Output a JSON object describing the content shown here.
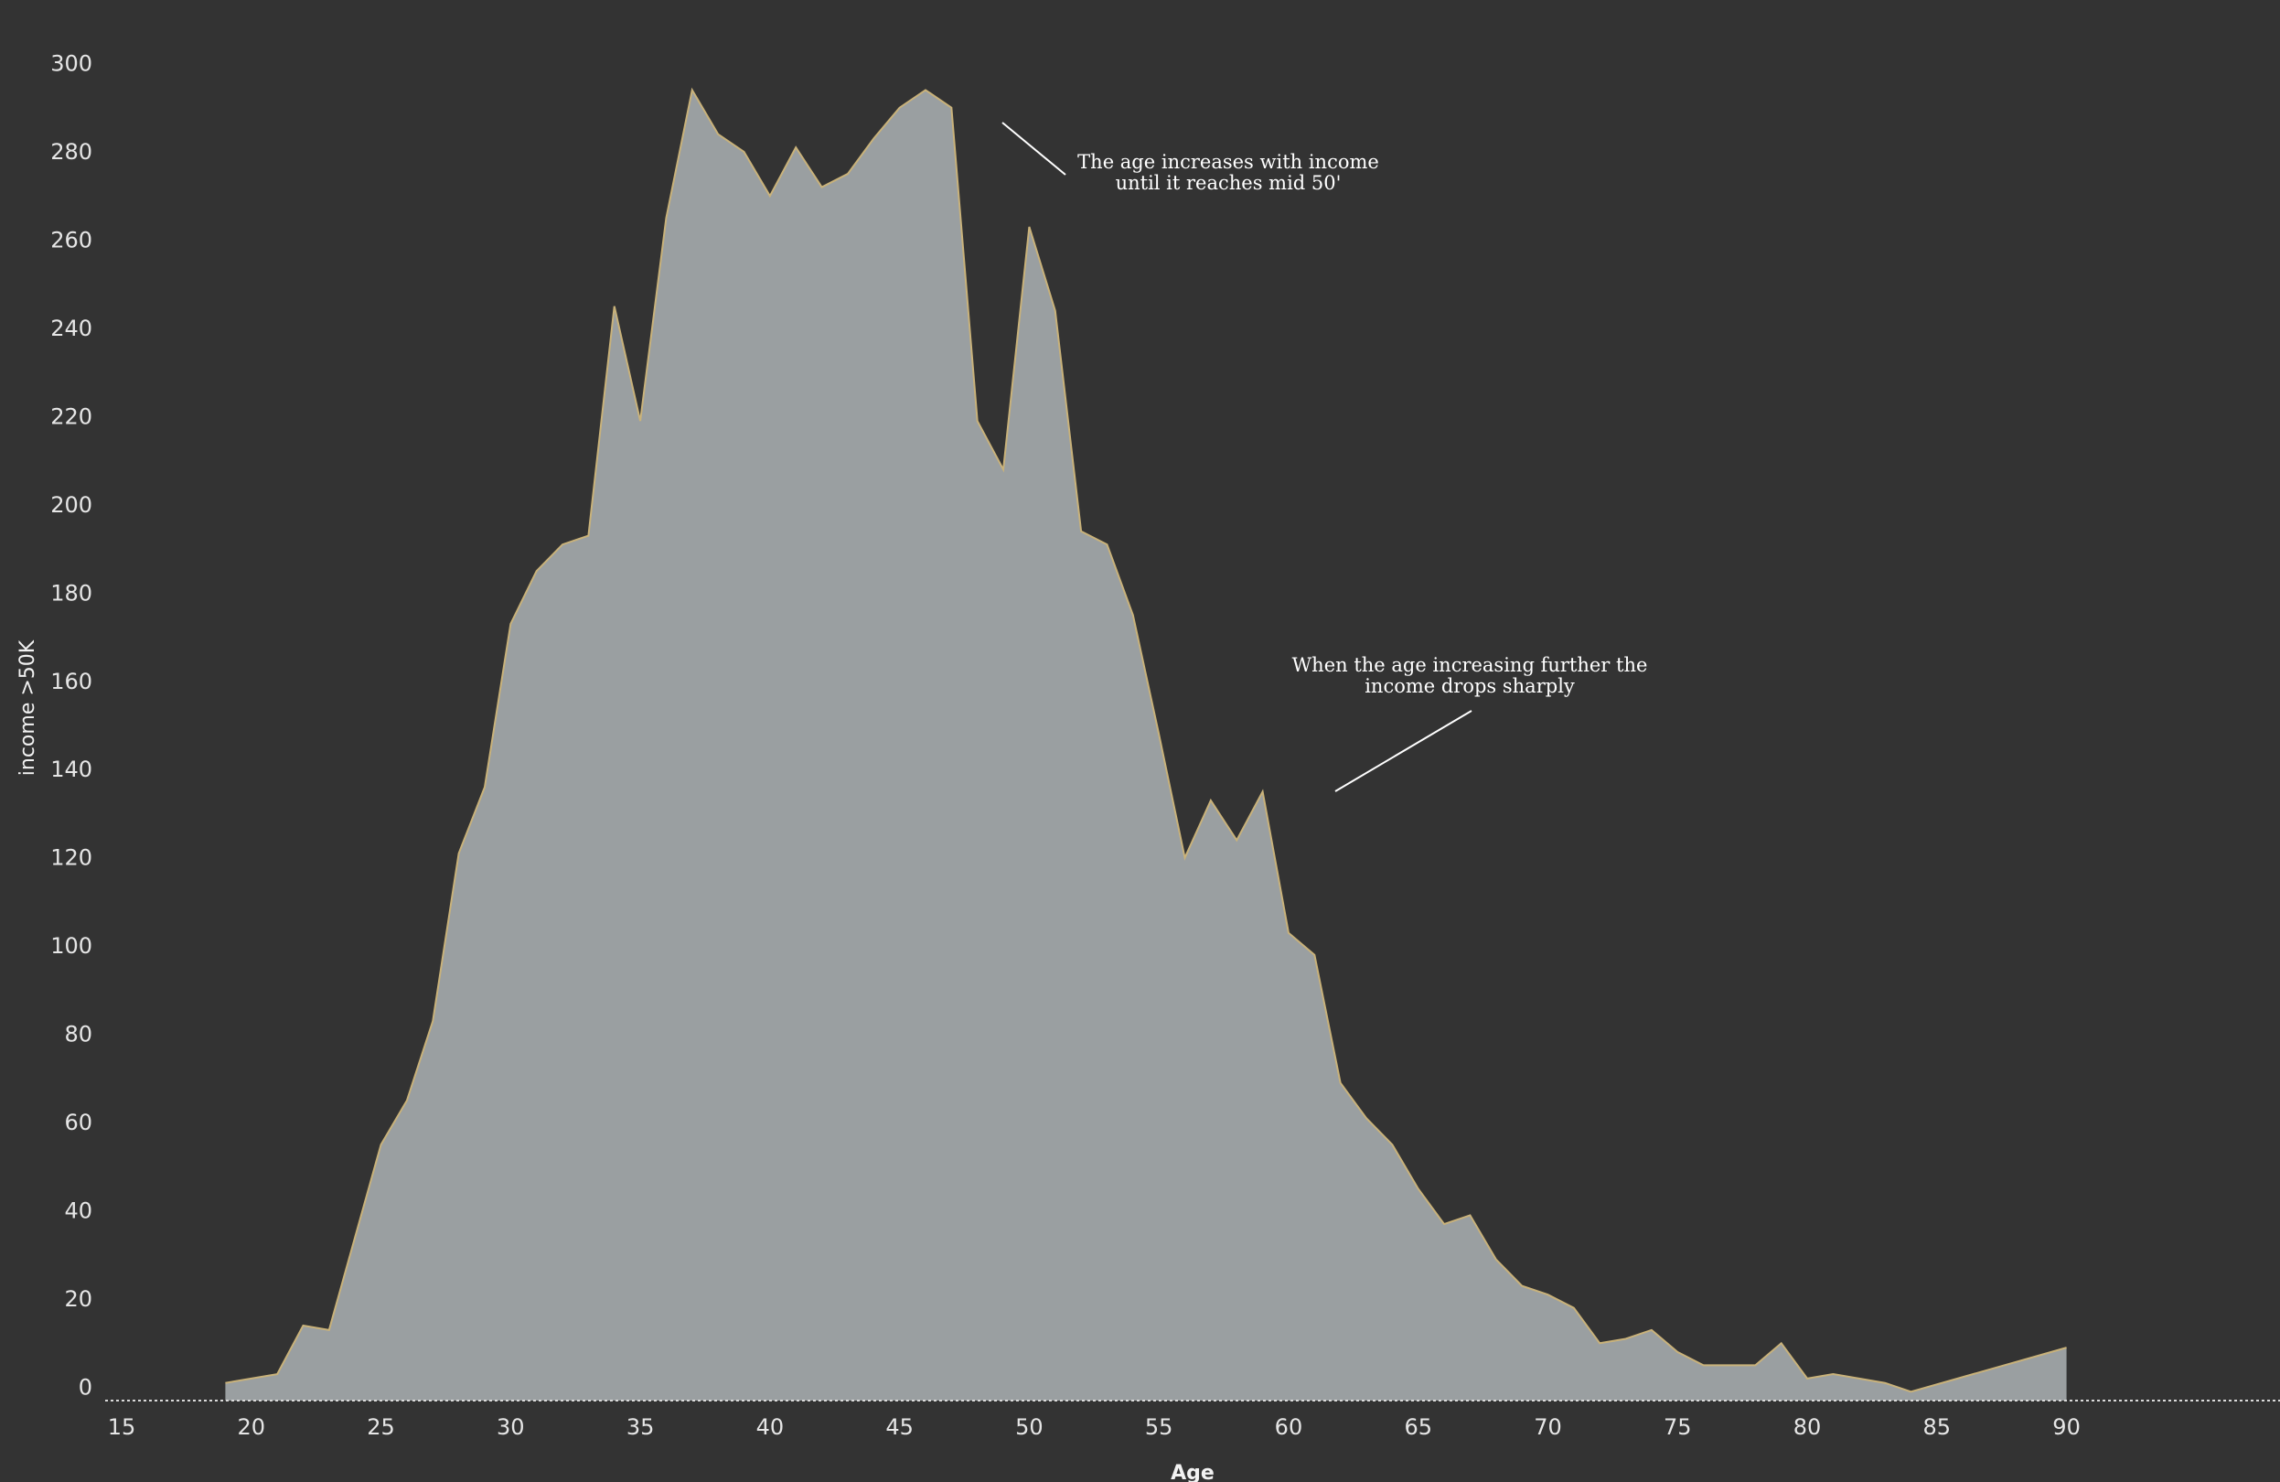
{
  "chart_data": {
    "type": "area",
    "title": "",
    "xlabel": "Age",
    "ylabel": "income >50K",
    "xlim": [
      15,
      94
    ],
    "ylim": [
      -3,
      303
    ],
    "x_ticks": [
      15,
      20,
      25,
      30,
      35,
      40,
      45,
      50,
      55,
      60,
      65,
      70,
      75,
      80,
      85,
      90
    ],
    "y_ticks": [
      0,
      20,
      40,
      60,
      80,
      100,
      120,
      140,
      160,
      180,
      200,
      220,
      240,
      260,
      280,
      300
    ],
    "grid": false,
    "legend": "none",
    "series": [
      {
        "x": [
          19,
          20,
          21,
          22,
          23,
          24,
          25,
          26,
          27,
          28,
          29,
          30,
          31,
          32,
          33,
          34,
          35,
          36,
          37,
          38,
          39,
          40,
          41,
          42,
          43,
          44,
          45,
          46,
          47,
          48,
          49,
          50,
          51,
          52,
          53,
          54,
          55,
          56,
          57,
          58,
          59,
          60,
          61,
          62,
          63,
          64,
          65,
          66,
          67,
          68,
          69,
          70,
          71,
          72,
          73,
          74,
          75,
          76,
          77,
          78,
          79,
          80,
          81,
          82,
          83,
          84,
          90
        ],
        "values": [
          1,
          2,
          3,
          14,
          13,
          34,
          55,
          65,
          83,
          121,
          136,
          173,
          185,
          191,
          193,
          245,
          219,
          265,
          294,
          284,
          280,
          270,
          281,
          272,
          275,
          283,
          290,
          294,
          290,
          219,
          208,
          263,
          244,
          194,
          191,
          175,
          148,
          120,
          133,
          124,
          135,
          103,
          98,
          69,
          61,
          55,
          45,
          37,
          39,
          29,
          23,
          21,
          18,
          10,
          11,
          13,
          8,
          5,
          5,
          5,
          10,
          2,
          3,
          2,
          1,
          -1,
          9
        ]
      }
    ],
    "colors": {
      "background": "#333333",
      "area_fill": "#9a9fa1",
      "area_stroke": "#c9b27a",
      "baseline": "#d9d9d9",
      "text": "#ffffff"
    },
    "annotations": [
      {
        "lines": [
          "The age increases with income",
          "until it reaches mid 50'"
        ]
      },
      {
        "lines": [
          "When the age increasing further the",
          "income drops sharply"
        ]
      }
    ]
  }
}
